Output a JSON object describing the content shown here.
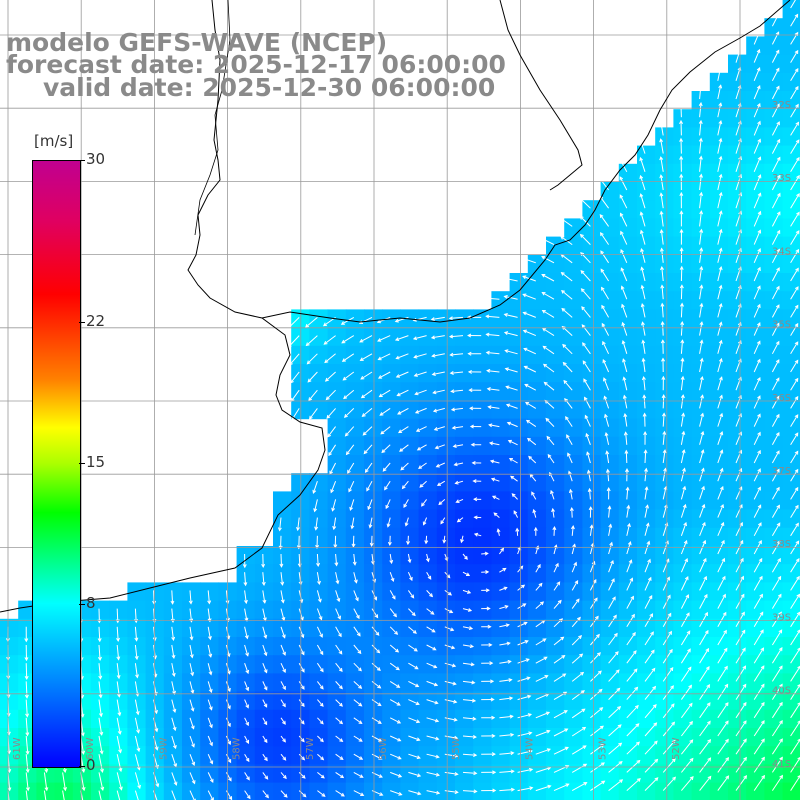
{
  "title": {
    "line1": "modelo GEFS-WAVE (NCEP)",
    "line2": "forecast date: 2025-12-17 06:00:00",
    "line3": "valid date: 2025-12-30 06:00:00"
  },
  "colorbar": {
    "unit": "[m/s]",
    "ticks": [
      "30",
      "22",
      "15",
      "8",
      "0"
    ],
    "tick_values": [
      30,
      22,
      15,
      8,
      0
    ],
    "range": [
      0,
      30
    ],
    "colors": [
      "#0000ff",
      "#00aaff",
      "#00ffff",
      "#00ff00",
      "#aaff00",
      "#ffff00",
      "#ff8000",
      "#ff0000",
      "#e00060",
      "#c00090"
    ]
  },
  "lon_labels": [
    "61W",
    "60W",
    "59W",
    "58W",
    "57W",
    "56W",
    "55W",
    "54W",
    "53W",
    "52W"
  ],
  "lat_labels": [
    "32S",
    "33S",
    "34S",
    "35S",
    "36S",
    "37S",
    "38S",
    "39S",
    "40S",
    "41S"
  ],
  "map": {
    "field": "wind speed with direction arrows",
    "land_color": "#ffffff",
    "coastline_color": "#000000",
    "grid_color": "#9a9a9a"
  }
}
